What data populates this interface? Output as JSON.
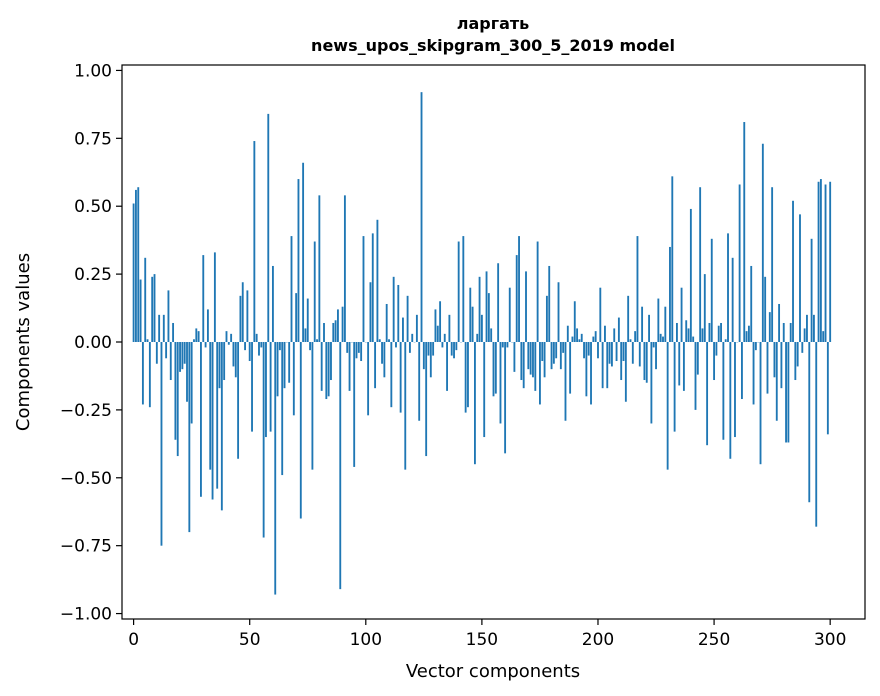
{
  "chart_data": {
    "type": "bar",
    "title_line1": "ларгать",
    "title_line2": "news_upos_skipgram_300_5_2019 model",
    "xlabel": "Vector components",
    "ylabel": "Components values",
    "xlim": [
      -5,
      315
    ],
    "ylim": [
      -1.02,
      1.02
    ],
    "xticks": [
      0,
      50,
      100,
      150,
      200,
      250,
      300
    ],
    "xtick_labels": [
      "0",
      "50",
      "100",
      "150",
      "200",
      "250",
      "300"
    ],
    "yticks": [
      1.0,
      0.75,
      0.5,
      0.25,
      0.0,
      -0.25,
      -0.5,
      -0.75,
      -1.0
    ],
    "ytick_labels": [
      "1.00",
      "0.75",
      "0.50",
      "0.25",
      "0.00",
      "−0.25",
      "−0.50",
      "−0.75",
      "−1.00"
    ],
    "bar_color": "#1f77b4",
    "values": [
      0.51,
      0.56,
      0.57,
      0.23,
      -0.23,
      0.31,
      0.01,
      -0.24,
      0.24,
      0.25,
      -0.08,
      0.1,
      -0.75,
      0.1,
      -0.06,
      0.19,
      -0.14,
      0.07,
      -0.36,
      -0.42,
      -0.11,
      -0.1,
      -0.08,
      -0.22,
      -0.7,
      -0.3,
      0.01,
      0.05,
      0.04,
      -0.57,
      0.32,
      -0.02,
      0.12,
      -0.47,
      -0.58,
      0.33,
      -0.54,
      -0.17,
      -0.62,
      -0.14,
      0.04,
      -0.01,
      0.03,
      -0.09,
      -0.13,
      -0.43,
      0.17,
      0.22,
      -0.03,
      0.19,
      -0.07,
      -0.33,
      0.74,
      0.03,
      -0.05,
      -0.02,
      -0.72,
      -0.35,
      0.84,
      -0.33,
      0.28,
      -0.93,
      -0.2,
      -0.03,
      -0.49,
      -0.17,
      0.0,
      -0.15,
      0.39,
      -0.27,
      0.18,
      0.6,
      -0.65,
      0.66,
      0.05,
      0.16,
      -0.03,
      -0.47,
      0.37,
      0.01,
      0.54,
      -0.18,
      0.07,
      -0.21,
      -0.2,
      -0.14,
      0.07,
      0.08,
      0.12,
      -0.91,
      0.13,
      0.54,
      -0.04,
      -0.18,
      0.0,
      -0.46,
      -0.06,
      -0.04,
      -0.07,
      0.39,
      0.0,
      -0.27,
      0.22,
      0.4,
      -0.17,
      0.45,
      0.01,
      -0.08,
      -0.13,
      0.14,
      0.01,
      -0.24,
      0.24,
      -0.02,
      0.21,
      -0.26,
      0.09,
      -0.47,
      0.17,
      -0.04,
      0.03,
      0.0,
      0.1,
      -0.29,
      0.92,
      -0.1,
      -0.42,
      -0.05,
      -0.13,
      -0.05,
      0.12,
      0.06,
      0.15,
      -0.02,
      0.03,
      -0.18,
      0.1,
      -0.05,
      -0.06,
      -0.03,
      0.37,
      0.0,
      0.39,
      -0.26,
      -0.24,
      0.2,
      0.13,
      -0.45,
      0.03,
      0.24,
      0.1,
      -0.35,
      0.26,
      0.18,
      0.05,
      -0.2,
      -0.19,
      0.29,
      -0.3,
      -0.02,
      -0.41,
      -0.02,
      0.2,
      0.0,
      -0.11,
      0.32,
      0.39,
      -0.14,
      -0.17,
      0.26,
      -0.1,
      -0.12,
      -0.13,
      -0.18,
      0.37,
      -0.23,
      -0.07,
      -0.13,
      0.17,
      0.28,
      -0.1,
      -0.08,
      -0.06,
      0.22,
      -0.1,
      -0.04,
      -0.29,
      0.06,
      -0.19,
      0.02,
      0.15,
      0.05,
      0.01,
      0.03,
      -0.06,
      -0.2,
      -0.05,
      -0.23,
      0.02,
      0.04,
      -0.06,
      0.2,
      -0.17,
      0.06,
      -0.17,
      -0.08,
      -0.09,
      0.05,
      -0.07,
      0.09,
      -0.14,
      -0.07,
      -0.22,
      0.17,
      0.01,
      -0.08,
      0.04,
      0.39,
      -0.09,
      0.13,
      -0.14,
      -0.15,
      0.1,
      -0.3,
      -0.02,
      -0.1,
      0.16,
      0.03,
      0.02,
      0.13,
      -0.47,
      0.35,
      0.61,
      -0.33,
      0.07,
      -0.16,
      0.2,
      -0.18,
      0.08,
      0.05,
      0.49,
      0.02,
      -0.25,
      -0.12,
      0.57,
      0.05,
      0.25,
      -0.38,
      0.07,
      0.38,
      -0.14,
      -0.05,
      0.06,
      0.07,
      -0.36,
      0.01,
      0.4,
      -0.43,
      0.31,
      -0.35,
      0.0,
      0.58,
      -0.21,
      0.81,
      0.04,
      0.06,
      0.28,
      -0.23,
      -0.03,
      0.0,
      -0.45,
      0.73,
      0.24,
      -0.19,
      0.11,
      0.57,
      -0.13,
      -0.29,
      0.14,
      -0.17,
      0.07,
      -0.37,
      -0.37,
      0.07,
      0.52,
      -0.14,
      -0.09,
      0.47,
      -0.04,
      0.05,
      0.1,
      -0.59,
      0.38,
      0.1,
      -0.68,
      0.59,
      0.6,
      0.04,
      0.58,
      -0.34,
      0.59
    ]
  }
}
